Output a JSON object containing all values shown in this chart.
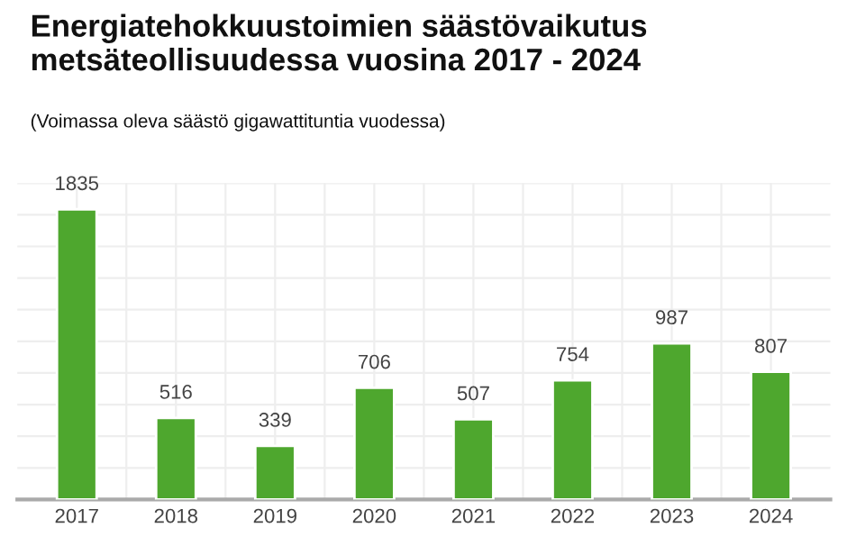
{
  "chart_data": {
    "type": "bar",
    "title": "Energiatehokkuustoimien säästövaikutus\nmetsäteollisuudessa vuosina 2017 - 2024",
    "subtitle": "(Voimassa oleva säästö gigawattituntia vuodessa)",
    "categories": [
      "2017",
      "2018",
      "2019",
      "2020",
      "2021",
      "2022",
      "2023",
      "2024"
    ],
    "values": [
      1835,
      516,
      339,
      706,
      507,
      754,
      987,
      807
    ],
    "color": "#4ea72e",
    "ylim": [
      0,
      2000
    ],
    "yticks": [
      {
        "value": 0,
        "label": null
      },
      {
        "value": 200,
        "label": null
      },
      {
        "value": 400,
        "label": null
      },
      {
        "value": 600,
        "label": null
      },
      {
        "value": 800,
        "label": null
      },
      {
        "value": 1000,
        "label": null
      },
      {
        "value": 1200,
        "label": null
      },
      {
        "value": 1400,
        "label": null
      },
      {
        "value": 1600,
        "label": null
      },
      {
        "value": 1800,
        "label": null
      },
      {
        "value": 2000,
        "label": null
      }
    ],
    "tick_labels": "x",
    "grid": true,
    "data_labels": true
  }
}
